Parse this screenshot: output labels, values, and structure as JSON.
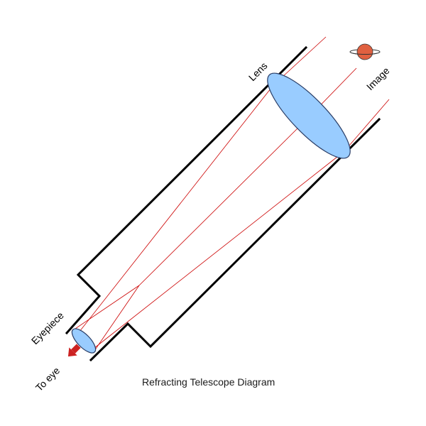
{
  "diagram": {
    "caption": "Refracting Telescope Diagram",
    "labels": {
      "lens": "Lens",
      "image": "Image",
      "eyepiece": "Eyepiece",
      "to_eye": "To eye"
    },
    "icons": {
      "planet": "saturn-planet-icon",
      "eye_direction": "arrow-down-left-icon"
    },
    "colors": {
      "tube": "#000000",
      "lens_fill": "#99ccff",
      "lens_stroke": "#2a3d66",
      "light_rays": "#cc0000",
      "planet": "#e06040",
      "arrow": "#cc2222"
    }
  }
}
